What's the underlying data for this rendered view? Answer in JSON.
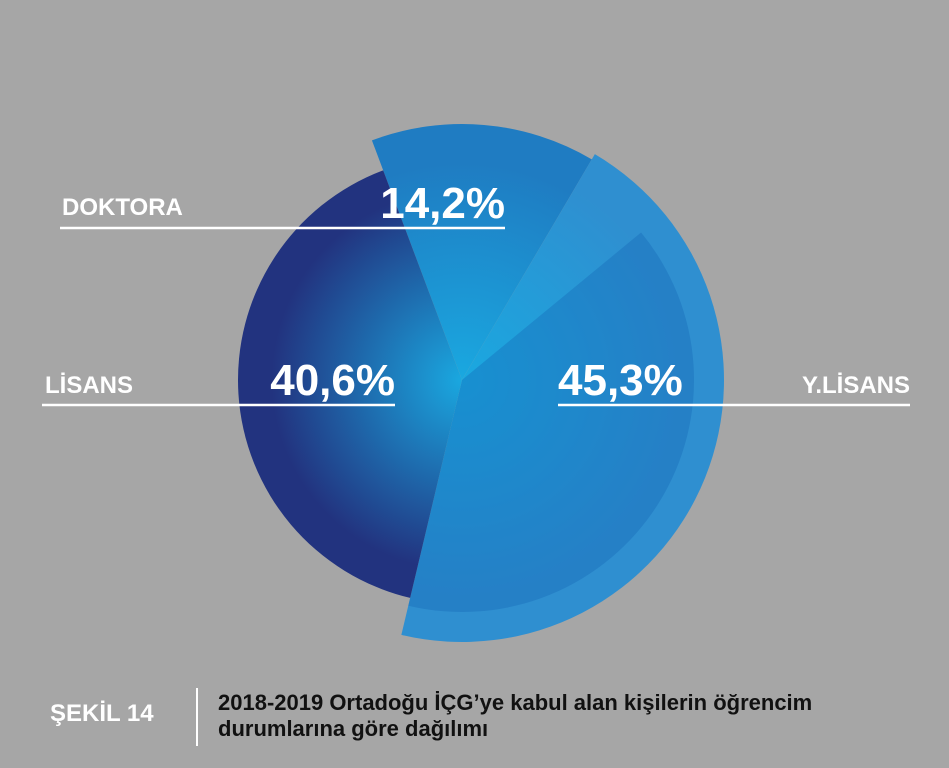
{
  "chart_data": {
    "type": "pie",
    "categories": [
      "DOKTORA",
      "Y.LİSANS",
      "LİSANS"
    ],
    "values": [
      14.2,
      45.3,
      40.6
    ],
    "value_labels": [
      "14,2%",
      "45,3%",
      "40,6%"
    ],
    "colors": [
      "#1f7cc2",
      "#2f8fd0",
      "#22337f"
    ],
    "figure_label": "ŞEKİL 14",
    "title": "2018-2019 Ortadoğu İÇG’ye kabul alan kişilerin öğrencim durumlarına göre dağılımı"
  }
}
